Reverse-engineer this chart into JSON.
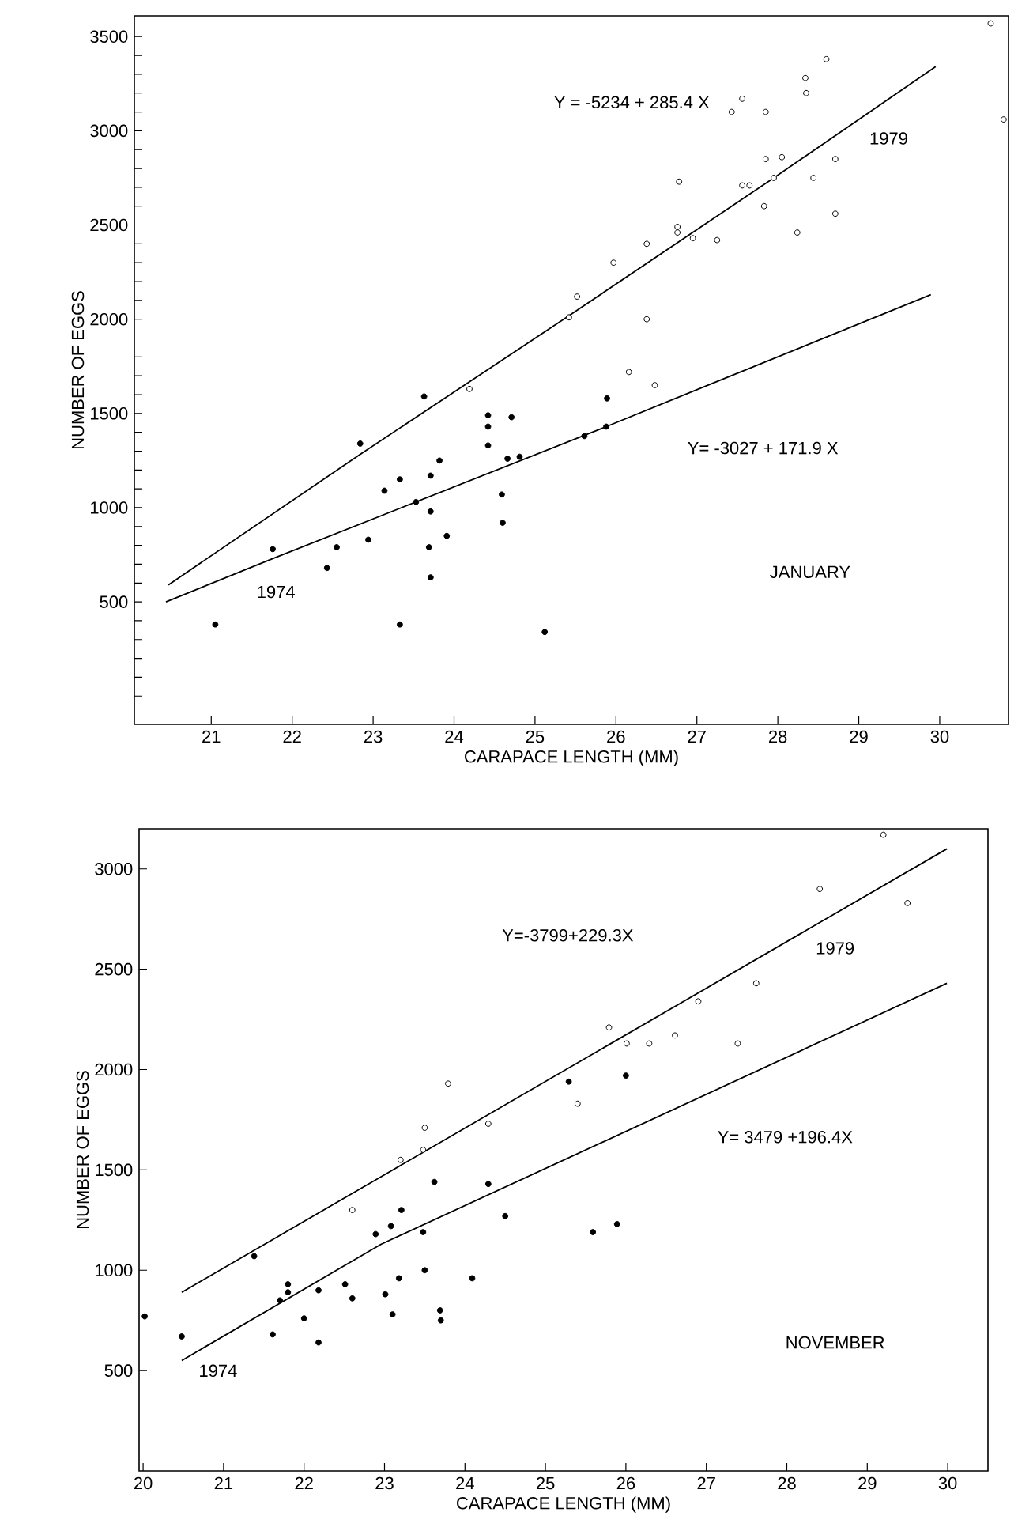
{
  "chart_data": [
    {
      "type": "scatter",
      "xlabel": "CARAPACE LENGTH (MM)",
      "ylabel": "NUMBER OF EGGS",
      "xlim": [
        20.05,
        30.85
      ],
      "ylim": [
        -150,
        3610
      ],
      "xticks": [
        21,
        22,
        23,
        24,
        25,
        26,
        27,
        28,
        29,
        30
      ],
      "yticks": [
        {
          "value": 0,
          "label": null
        },
        {
          "value": 100,
          "label": null
        },
        {
          "value": 200,
          "label": null
        },
        {
          "value": 300,
          "label": null
        },
        {
          "value": 400,
          "label": null
        },
        500,
        {
          "value": 600,
          "label": null
        },
        {
          "value": 700,
          "label": null
        },
        {
          "value": 800,
          "label": null
        },
        {
          "value": 900,
          "label": null
        },
        1000,
        {
          "value": 1100,
          "label": null
        },
        {
          "value": 1200,
          "label": null
        },
        {
          "value": 1300,
          "label": null
        },
        {
          "value": 1400,
          "label": null
        },
        1500,
        {
          "value": 1600,
          "label": null
        },
        {
          "value": 1700,
          "label": null
        },
        {
          "value": 1800,
          "label": null
        },
        {
          "value": 1900,
          "label": null
        },
        2000,
        {
          "value": 2100,
          "label": null
        },
        {
          "value": 2200,
          "label": null
        },
        {
          "value": 2300,
          "label": null
        },
        {
          "value": 2400,
          "label": null
        },
        2500,
        {
          "value": 2600,
          "label": null
        },
        {
          "value": 2700,
          "label": null
        },
        {
          "value": 2800,
          "label": null
        },
        {
          "value": 2900,
          "label": null
        },
        3000,
        {
          "value": 3100,
          "label": null
        },
        {
          "value": 3200,
          "label": null
        },
        {
          "value": 3300,
          "label": null
        },
        {
          "value": 3400,
          "label": null
        },
        3500
      ],
      "series": [
        {
          "marker": "circle",
          "color": "#000000",
          "x": [
            21.05,
            21.76,
            22.43,
            22.55,
            22.94,
            22.84,
            23.14,
            23.33,
            23.33,
            23.53,
            23.71,
            23.82,
            23.71,
            23.69,
            23.71,
            23.91,
            23.63,
            24.42,
            24.42,
            24.71,
            24.42,
            24.66,
            24.81,
            24.59,
            24.6,
            25.12,
            25.61,
            25.89,
            25.88
          ],
          "values": [
            380,
            780,
            680,
            790,
            830,
            1340,
            1090,
            1150,
            380,
            1030,
            1170,
            1250,
            980,
            790,
            630,
            850,
            1590,
            1490,
            1430,
            1480,
            1330,
            1260,
            1270,
            1070,
            920,
            340,
            1380,
            1580,
            1430
          ]
        },
        {
          "marker": "circle",
          "color": "#ffffff",
          "x": [
            24.19,
            25.42,
            25.52,
            26.38,
            26.16,
            26.48,
            25.97,
            26.38,
            26.76,
            26.76,
            26.95,
            27.25,
            26.78,
            27.43,
            27.56,
            27.85,
            27.56,
            27.65,
            27.95,
            27.83,
            27.85,
            28.05,
            28.44,
            28.24,
            28.34,
            28.35,
            28.6,
            28.71,
            28.71,
            30.63,
            30.79
          ],
          "values": [
            1630,
            2010,
            2120,
            2000,
            1720,
            1650,
            2300,
            2400,
            2490,
            2460,
            2430,
            2420,
            2730,
            3100,
            3170,
            3100,
            2710,
            2710,
            2750,
            2600,
            2850,
            2860,
            2750,
            2460,
            3280,
            3200,
            3380,
            2850,
            2560,
            3570,
            3060
          ]
        },
        {
          "type": "line",
          "marker": "none",
          "color": "#000000",
          "x": [
            20.47,
            22.83,
            25.39,
            27.95,
            29.95
          ],
          "values": [
            590,
            1280,
            2010,
            2750,
            3340
          ]
        },
        {
          "type": "line",
          "marker": "none",
          "color": "#000000",
          "x": [
            20.44,
            21.76,
            23.35,
            25.88,
            27.25,
            29.89
          ],
          "values": [
            500,
            730,
            1000,
            1430,
            1670,
            2130
          ]
        }
      ],
      "annotations": [
        "Y = -5234 + 285.4 X",
        "1979",
        "Y= -3027 + 171.9 X",
        "1974",
        "JANUARY"
      ]
    },
    {
      "type": "scatter",
      "xlabel": "CARAPACE LENGTH (MM)",
      "ylabel": "NUMBER OF EGGS",
      "xlim": [
        19.95,
        30.5
      ],
      "ylim": [
        0,
        3200
      ],
      "xticks": [
        20,
        21,
        22,
        23,
        24,
        25,
        26,
        27,
        28,
        29,
        30
      ],
      "yticks": [
        500,
        1000,
        1500,
        2000,
        2500,
        3000
      ],
      "series": [
        {
          "marker": "circle",
          "color": "#000000",
          "x": [
            20.02,
            20.48,
            21.38,
            21.61,
            21.7,
            21.8,
            21.8,
            22.0,
            22.18,
            22.18,
            22.51,
            22.6,
            22.89,
            23.01,
            23.08,
            23.1,
            23.18,
            23.21,
            23.48,
            23.5,
            23.62,
            23.69,
            23.7,
            24.09,
            24.29,
            24.5,
            25.29,
            26.0,
            25.59,
            25.89
          ],
          "values": [
            770,
            670,
            1070,
            680,
            850,
            930,
            890,
            760,
            900,
            640,
            930,
            860,
            1180,
            880,
            1220,
            780,
            960,
            1300,
            1190,
            1000,
            1440,
            800,
            750,
            960,
            1430,
            1270,
            1940,
            1970,
            1190,
            1230
          ]
        },
        {
          "marker": "circle",
          "color": "#ffffff",
          "x": [
            22.6,
            23.2,
            23.48,
            23.5,
            23.79,
            24.29,
            25.4,
            25.79,
            26.01,
            26.29,
            26.61,
            26.9,
            27.39,
            27.62,
            28.41,
            29.2,
            29.5
          ],
          "values": [
            1300,
            1550,
            1600,
            1710,
            1930,
            1730,
            1830,
            2210,
            2130,
            2130,
            2170,
            2340,
            2130,
            2430,
            2900,
            3170,
            2830
          ]
        },
        {
          "type": "line",
          "marker": "none",
          "color": "#000000",
          "x": [
            20.48,
            23.06,
            29.99
          ],
          "values": [
            890,
            1490,
            3100
          ]
        },
        {
          "type": "line",
          "marker": "none",
          "color": "#000000",
          "x": [
            20.48,
            22.96,
            29.99
          ],
          "values": [
            550,
            1130,
            2430
          ]
        }
      ],
      "annotations": [
        "Y=-3799+229.3X",
        "1979",
        "Y= 3479 +196.4X",
        "1974",
        "NOVEMBER"
      ]
    }
  ]
}
